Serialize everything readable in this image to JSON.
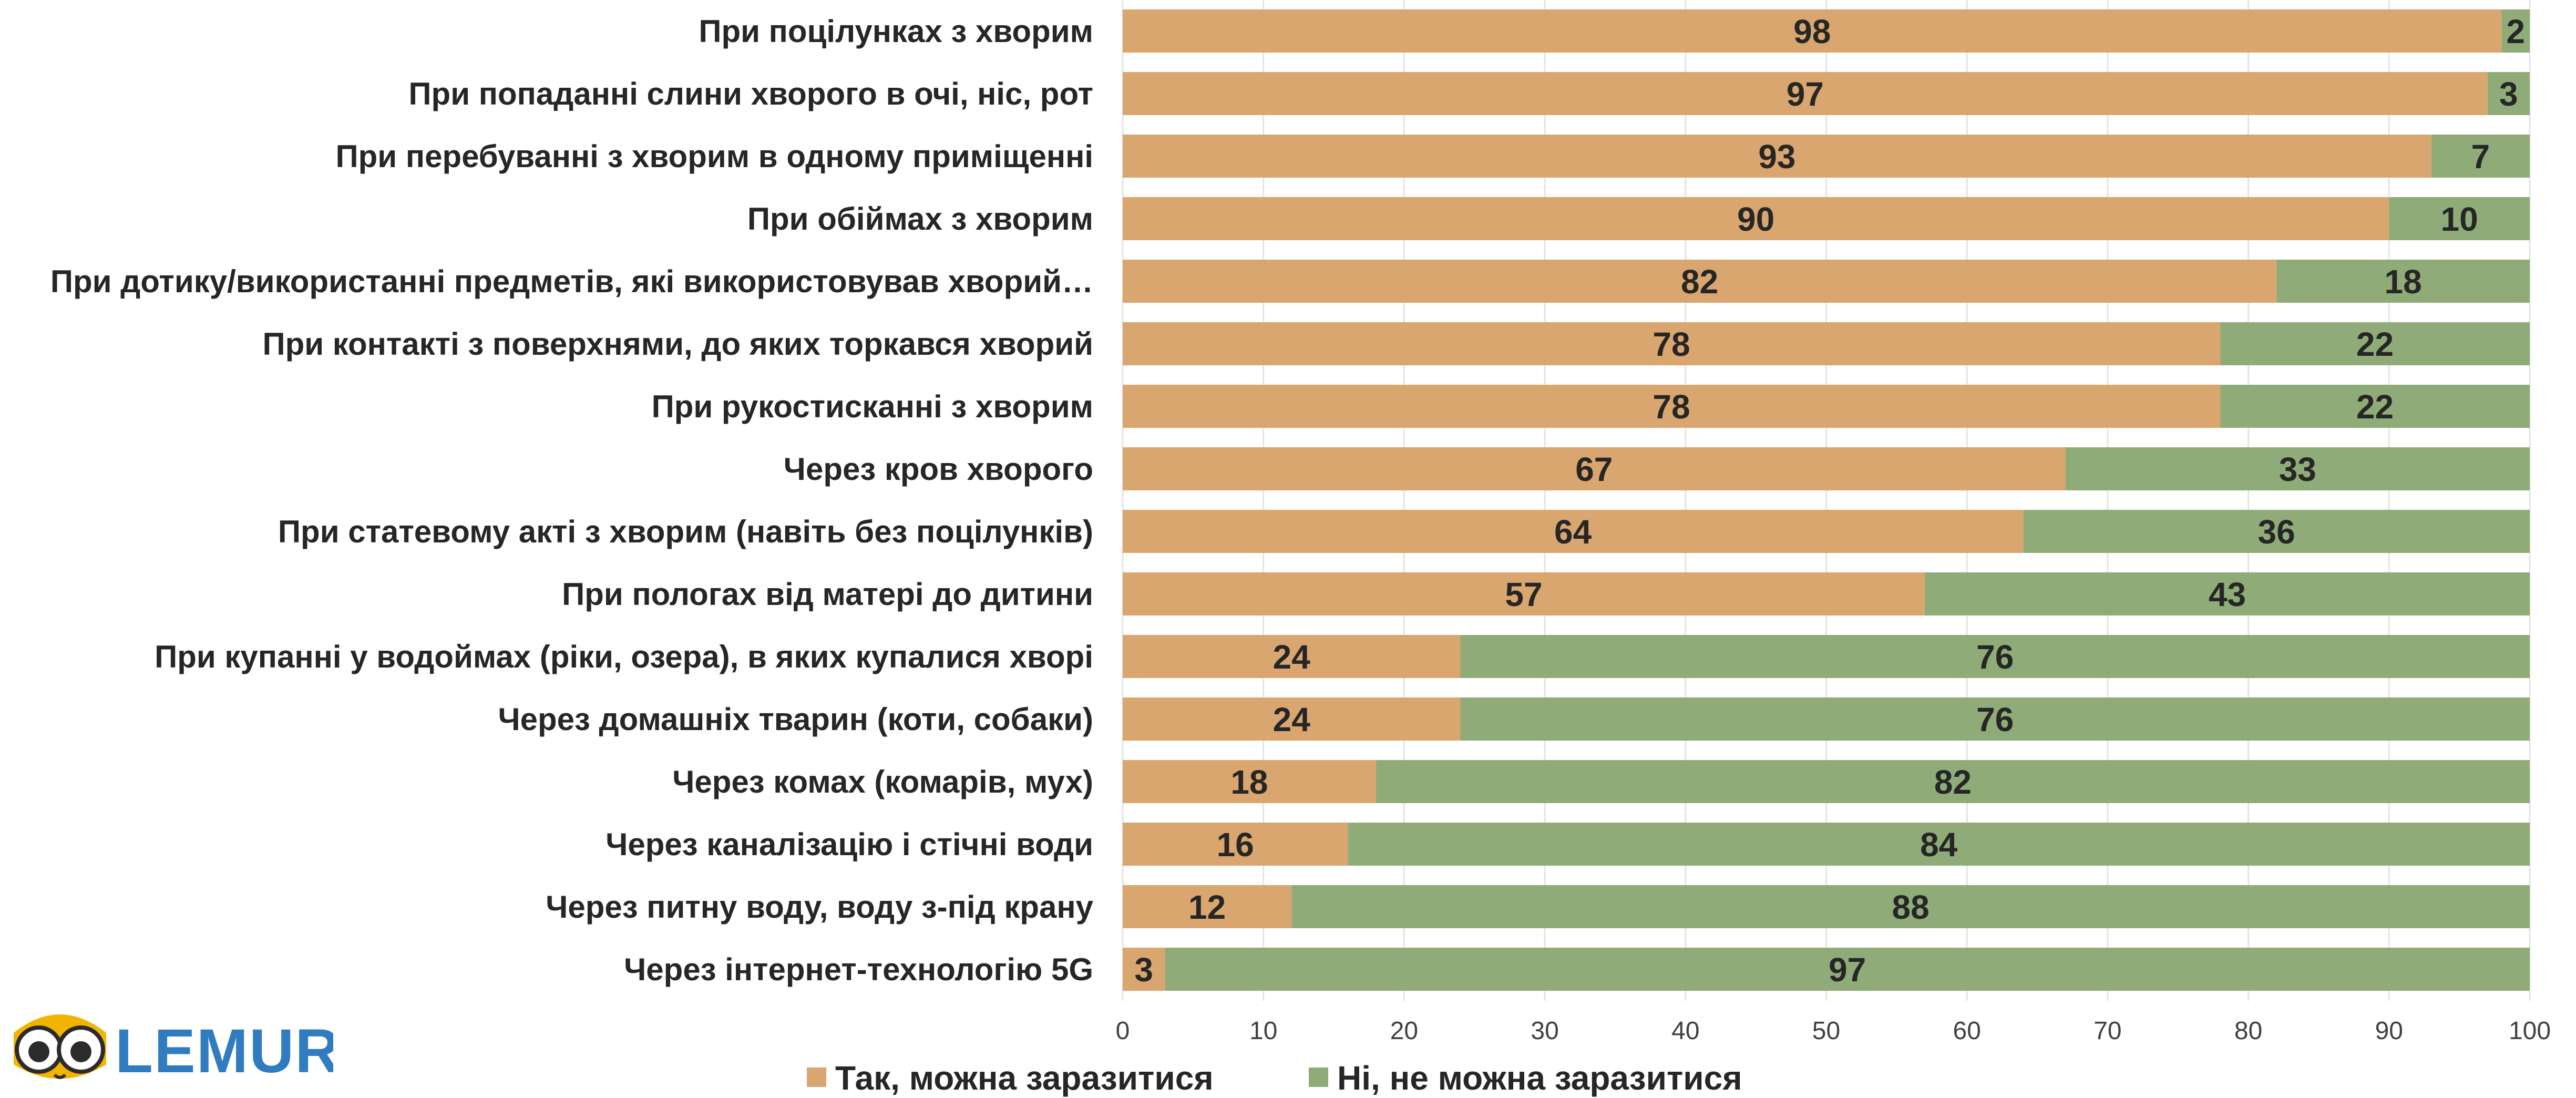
{
  "chart_data": {
    "type": "bar",
    "orientation": "horizontal",
    "stacked": true,
    "categories": [
      "При поцілунках з хворим",
      "При попаданні слини хворого в очі, ніс, рот",
      "При перебуванні з хворим в одному приміщенні",
      "При обіймах з хворим",
      "При дотику/використанні предметів, які використовував хворий…",
      "При контакті з поверхнями, до яких торкався хворий",
      "При рукостисканні з хворим",
      "Через кров хворого",
      "При статевому акті з хворим (навіть без поцілунків)",
      "При пологах від матері до дитини",
      "При купанні у водоймах (ріки, озера), в яких купалися хворі",
      "Через домашніх тварин (коти, собаки)",
      "Через комах (комарів, мух)",
      "Через каналізацію і стічні води",
      "Через питну воду, воду з-під крану",
      "Через інтернет-технологію 5G"
    ],
    "series": [
      {
        "name": "Так, можна заразитися",
        "color": "#d9a66f",
        "values": [
          98,
          97,
          93,
          90,
          82,
          78,
          78,
          67,
          64,
          57,
          24,
          24,
          18,
          16,
          12,
          3
        ]
      },
      {
        "name": "Ні, не можна заразитися",
        "color": "#8fac78",
        "values": [
          2,
          3,
          7,
          10,
          18,
          22,
          22,
          33,
          36,
          43,
          76,
          76,
          82,
          84,
          88,
          97
        ]
      }
    ],
    "xlim": [
      0,
      100
    ],
    "xticks": [
      "0",
      "10",
      "20",
      "30",
      "40",
      "50",
      "60",
      "70",
      "80",
      "90",
      "100"
    ],
    "grid": true,
    "legend_position": "bottom"
  },
  "logo": {
    "text": "LEMUR"
  }
}
